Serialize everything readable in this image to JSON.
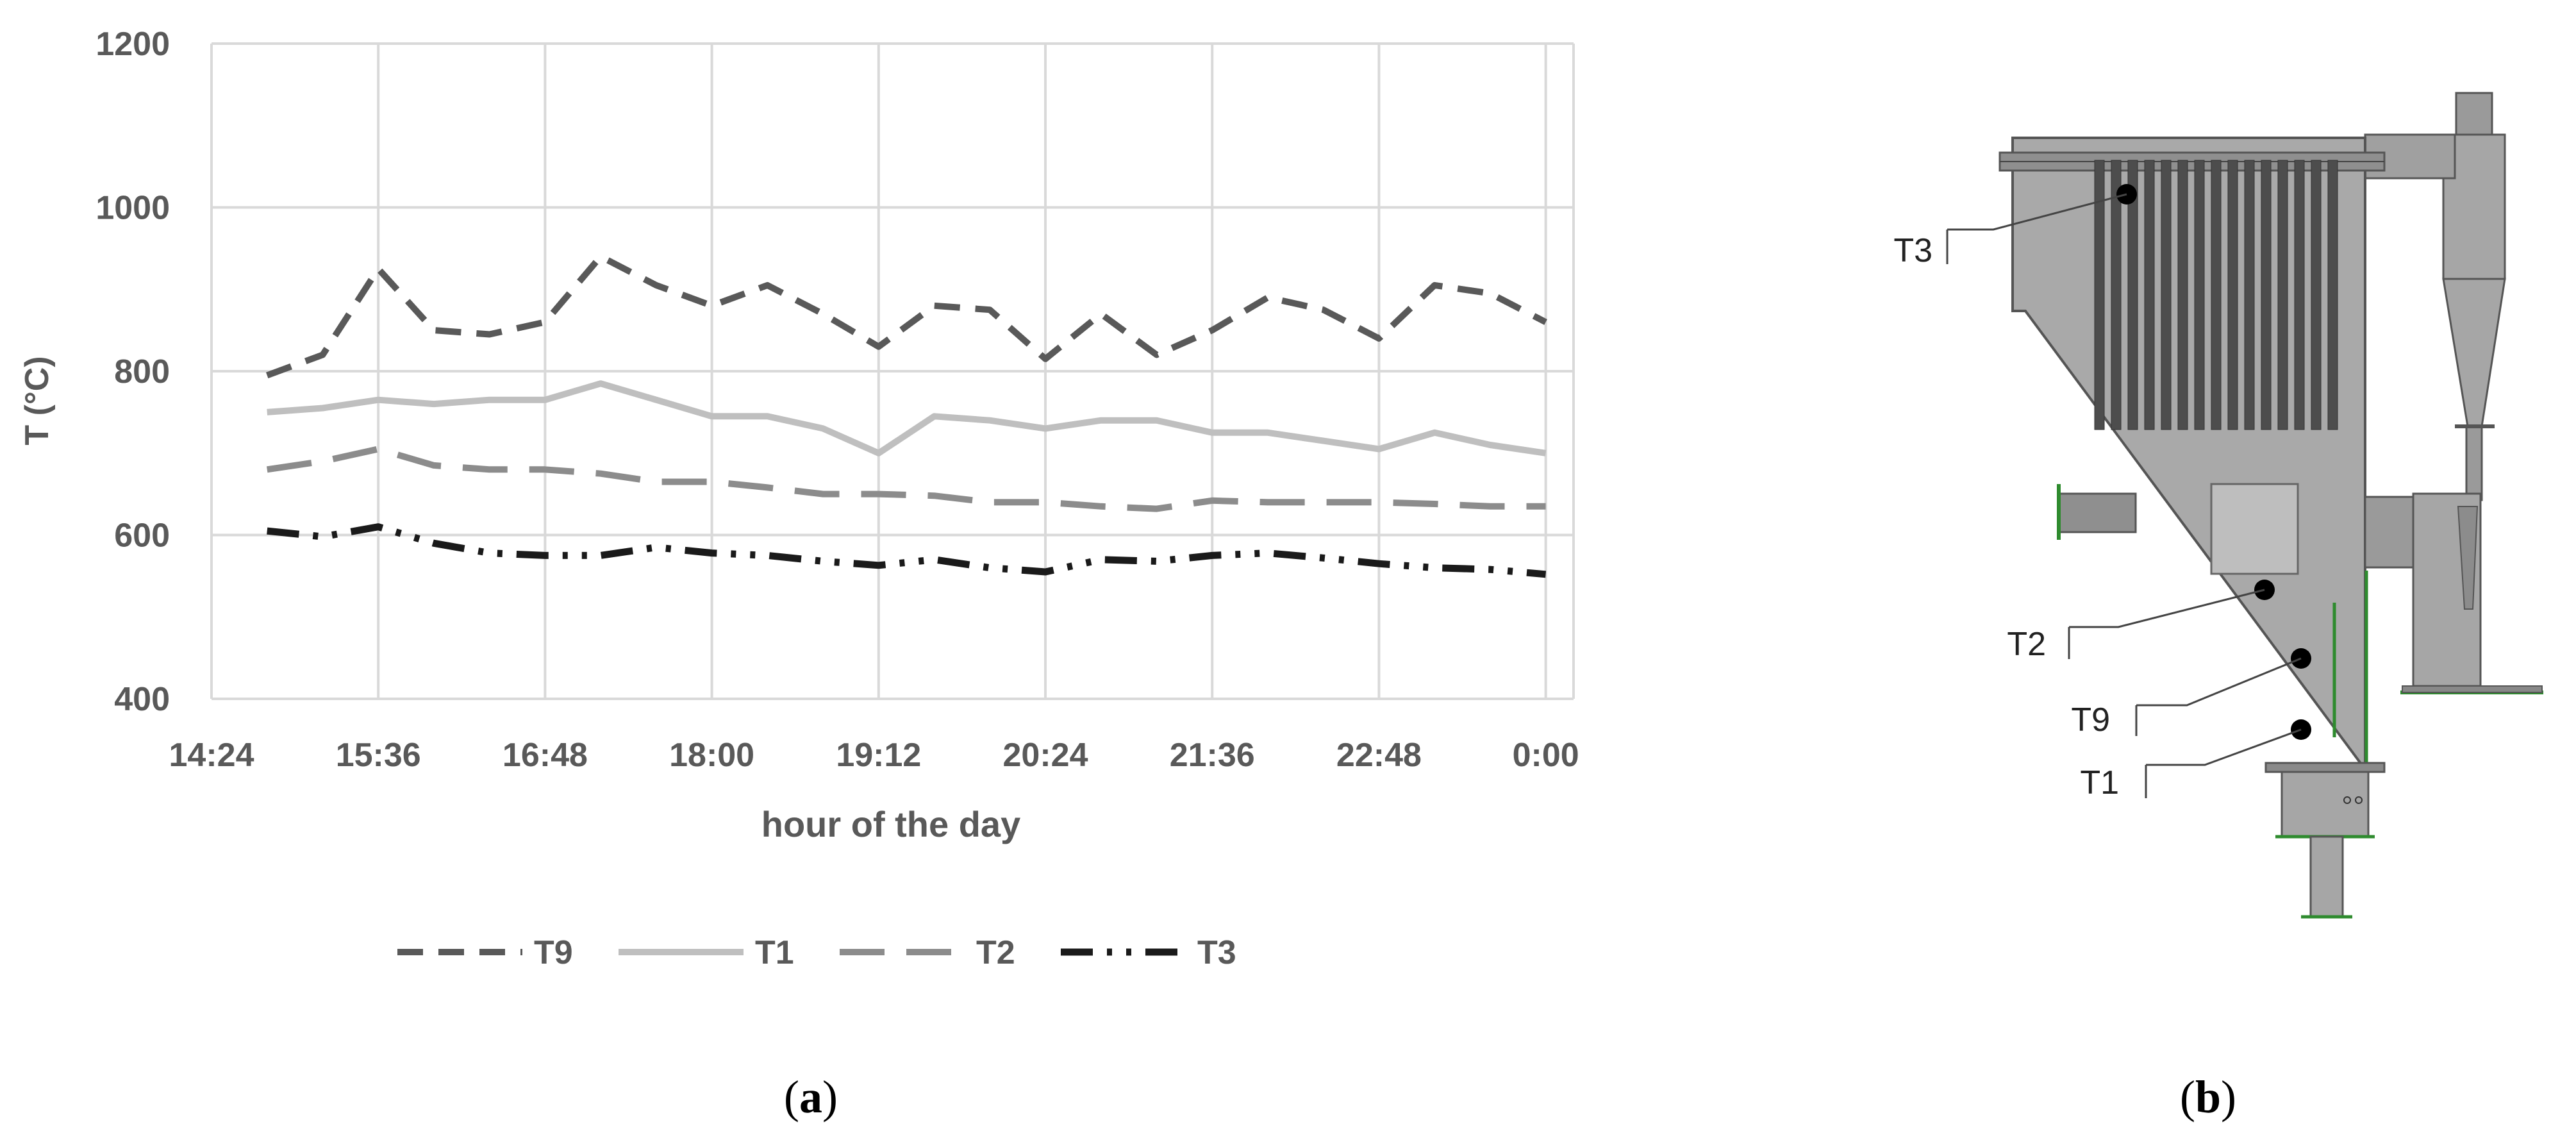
{
  "chart_data": {
    "type": "line",
    "x": [
      "14:24",
      "14:48",
      "15:12",
      "15:36",
      "16:00",
      "16:24",
      "16:48",
      "17:12",
      "17:36",
      "18:00",
      "18:24",
      "18:48",
      "19:12",
      "19:36",
      "20:00",
      "20:24",
      "20:48",
      "21:12",
      "21:36",
      "22:00",
      "22:24",
      "22:48",
      "23:12",
      "23:36",
      "0:00",
      "0:12"
    ],
    "x_ticks": [
      "14:24",
      "15:36",
      "16:48",
      "18:00",
      "19:12",
      "20:24",
      "21:36",
      "22:48",
      "0:00"
    ],
    "y_ticks": [
      "400",
      "600",
      "800",
      "1000",
      "1200"
    ],
    "ylim": [
      400,
      1200
    ],
    "xlabel": "hour of the day",
    "ylabel": "T (°C)",
    "grid": true,
    "legend_position": "bottom",
    "series": [
      {
        "name": "T9",
        "color": "#595959",
        "dash": "dash",
        "values": [
          null,
          795,
          820,
          925,
          850,
          845,
          860,
          940,
          905,
          880,
          905,
          870,
          830,
          880,
          875,
          815,
          870,
          820,
          850,
          890,
          875,
          840,
          905,
          895,
          860,
          null
        ]
      },
      {
        "name": "T1",
        "color": "#bfbfbf",
        "dash": "solid",
        "values": [
          null,
          750,
          755,
          765,
          760,
          765,
          765,
          785,
          765,
          745,
          745,
          730,
          700,
          745,
          740,
          730,
          740,
          740,
          725,
          725,
          715,
          705,
          725,
          710,
          700,
          null
        ]
      },
      {
        "name": "T2",
        "color": "#8c8c8c",
        "dash": "longdash",
        "values": [
          null,
          680,
          690,
          705,
          685,
          680,
          680,
          675,
          665,
          665,
          658,
          650,
          650,
          648,
          640,
          640,
          635,
          632,
          642,
          640,
          640,
          640,
          638,
          635,
          635,
          null
        ]
      },
      {
        "name": "T3",
        "color": "#1a1a1a",
        "dash": "dashdotdot",
        "values": [
          null,
          605,
          598,
          610,
          590,
          578,
          575,
          575,
          585,
          578,
          575,
          568,
          563,
          570,
          560,
          555,
          570,
          568,
          575,
          578,
          572,
          565,
          560,
          558,
          552,
          null
        ]
      }
    ]
  },
  "diagram": {
    "sensors": [
      "T3",
      "T2",
      "T9",
      "T1"
    ]
  },
  "captions": {
    "a": "(a)",
    "b": "(b)"
  }
}
